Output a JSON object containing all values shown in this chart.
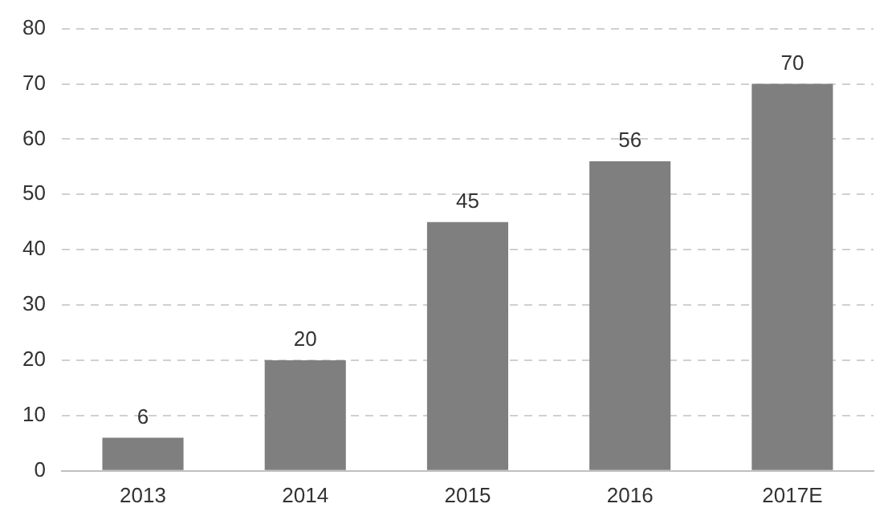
{
  "chart_data": {
    "type": "bar",
    "categories": [
      "2013",
      "2014",
      "2015",
      "2016",
      "2017E"
    ],
    "values": [
      6,
      20,
      45,
      56,
      70
    ],
    "color": "#7f7f7f",
    "ylim": [
      0,
      80
    ],
    "yticks": [
      0,
      10,
      20,
      30,
      40,
      50,
      60,
      70,
      80
    ],
    "grid": "y",
    "data_labels": true,
    "legend": false
  }
}
